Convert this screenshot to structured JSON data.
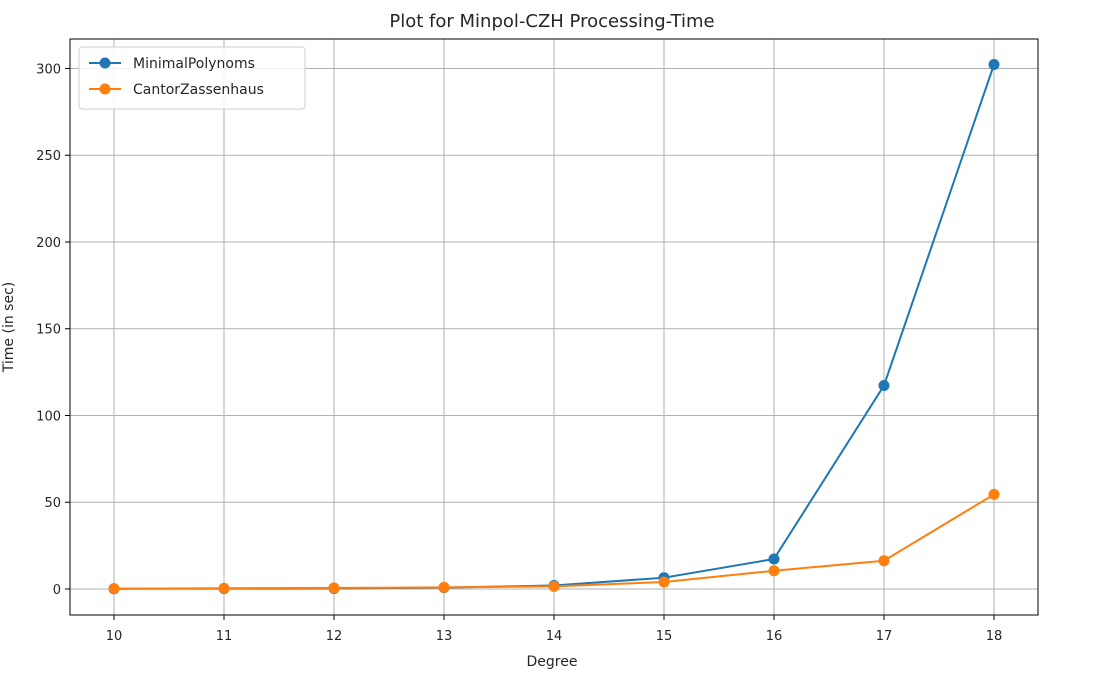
{
  "chart_data": {
    "type": "line",
    "title": "Plot for Minpol-CZH Processing-Time",
    "xlabel": "Degree",
    "ylabel": "Time (in sec)",
    "x": [
      10,
      11,
      12,
      13,
      14,
      15,
      16,
      17,
      18
    ],
    "x_tick_labels": [
      "10",
      "11",
      "12",
      "13",
      "14",
      "15",
      "16",
      "17",
      "18"
    ],
    "xlim": [
      9.6,
      18.4
    ],
    "ylim": [
      -15,
      317
    ],
    "y_ticks": [
      0,
      50,
      100,
      150,
      200,
      250,
      300
    ],
    "y_tick_labels": [
      "0",
      "50",
      "100",
      "150",
      "200",
      "250",
      "300"
    ],
    "grid": true,
    "legend_position": "top-left",
    "series": [
      {
        "name": "MinimalPolynoms",
        "color": "#1f77b4",
        "marker": "circle",
        "values": [
          0.1,
          0.2,
          0.3,
          0.8,
          2.0,
          6.5,
          17.3,
          117.3,
          302.3
        ]
      },
      {
        "name": "CantorZassenhaus",
        "color": "#ff7f0e",
        "marker": "circle",
        "values": [
          0.2,
          0.4,
          0.6,
          0.9,
          1.5,
          4.0,
          10.5,
          16.3,
          54.5
        ]
      }
    ]
  }
}
